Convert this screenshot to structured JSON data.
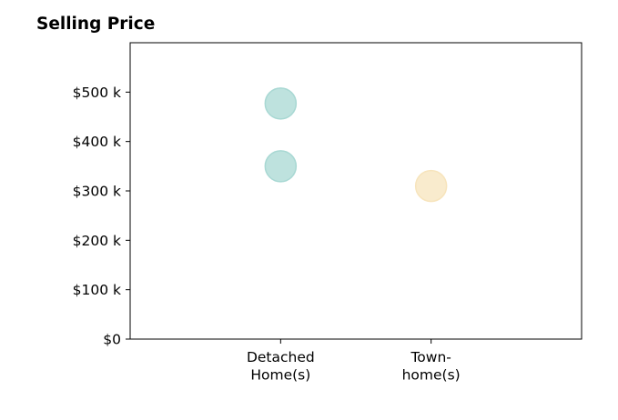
{
  "chart_data": {
    "type": "scatter",
    "title": "Selling Price",
    "xlabel": "",
    "ylabel": "",
    "categories": [
      [
        "Detached",
        "Home(s)"
      ],
      [
        "Town-",
        "home(s)"
      ]
    ],
    "y_ticks": [
      0,
      100000,
      200000,
      300000,
      400000,
      500000
    ],
    "y_tick_labels": [
      "$0",
      "$100 k",
      "$200 k",
      "$300 k",
      "$400 k",
      "$500 k"
    ],
    "ylim": [
      0,
      600000
    ],
    "xlim": [
      -1,
      2
    ],
    "grid": false,
    "points": [
      {
        "category": 0,
        "y": 477000,
        "color": "#a8d8d3"
      },
      {
        "category": 0,
        "y": 350000,
        "color": "#a8d8d3"
      },
      {
        "category": 1,
        "y": 310000,
        "color": "#f7e4bc"
      }
    ]
  }
}
